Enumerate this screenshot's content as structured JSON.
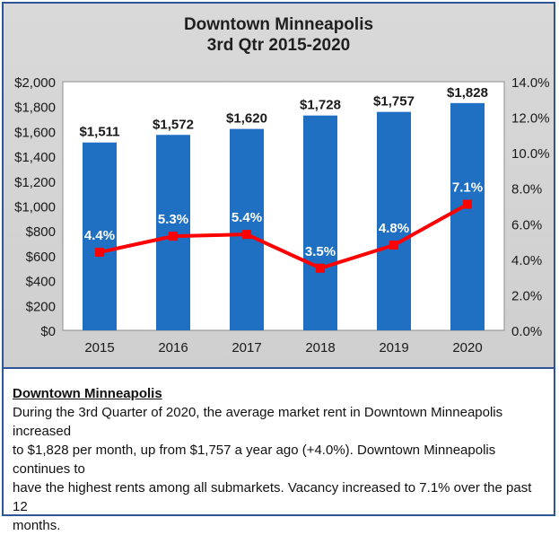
{
  "chart_data": {
    "type": "bar",
    "title": [
      "Downtown Minneapolis",
      "3rd Qtr 2015-2020"
    ],
    "categories": [
      "2015",
      "2016",
      "2017",
      "2018",
      "2019",
      "2020"
    ],
    "series": [
      {
        "name": "",
        "type": "bar",
        "axis": "left",
        "values": [
          1511,
          1572,
          1620,
          1728,
          1757,
          1828
        ],
        "labels": [
          "$1,511",
          "$1,572",
          "$1,620",
          "$1,728",
          "$1,757",
          "$1,828"
        ]
      },
      {
        "name": "",
        "type": "line",
        "axis": "right",
        "values": [
          4.4,
          5.3,
          5.4,
          3.5,
          4.8,
          7.1
        ],
        "labels": [
          "4.4%",
          "5.3%",
          "5.4%",
          "3.5%",
          "4.8%",
          "7.1%"
        ]
      }
    ],
    "y_left": {
      "ylim": [
        0,
        2000
      ],
      "ticks": [
        0,
        200,
        400,
        600,
        800,
        1000,
        1200,
        1400,
        1600,
        1800,
        2000
      ],
      "tick_labels": [
        "$0",
        "$200",
        "$400",
        "$600",
        "$800",
        "$1,000",
        "$1,200",
        "$1,400",
        "$1,600",
        "$1,800",
        "$2,000"
      ]
    },
    "y_right": {
      "ylim": [
        0,
        14
      ],
      "ticks": [
        0,
        2,
        4,
        6,
        8,
        10,
        12,
        14
      ],
      "tick_labels": [
        "0.0%",
        "2.0%",
        "4.0%",
        "6.0%",
        "8.0%",
        "10.0%",
        "12.0%",
        "14.0%"
      ]
    },
    "xlabel": "",
    "ylabel": "",
    "grid": false,
    "legend": "none",
    "colors": {
      "bar": "#1f6fc2",
      "line": "#ff0000",
      "background": "#d9d9d9",
      "plot_area": "#ffffff",
      "border": "#2f5597"
    }
  },
  "summary": {
    "heading": "Downtown Minneapolis",
    "lines": [
      "During the 3rd Quarter of 2020, the average market rent in Downtown Minneapolis increased",
      "to $1,828 per month, up from $1,757 a year ago (+4.0%).  Downtown Minneapolis continues to",
      "have the highest rents among all submarkets. Vacancy increased to 7.1% over the past 12",
      "months."
    ]
  }
}
